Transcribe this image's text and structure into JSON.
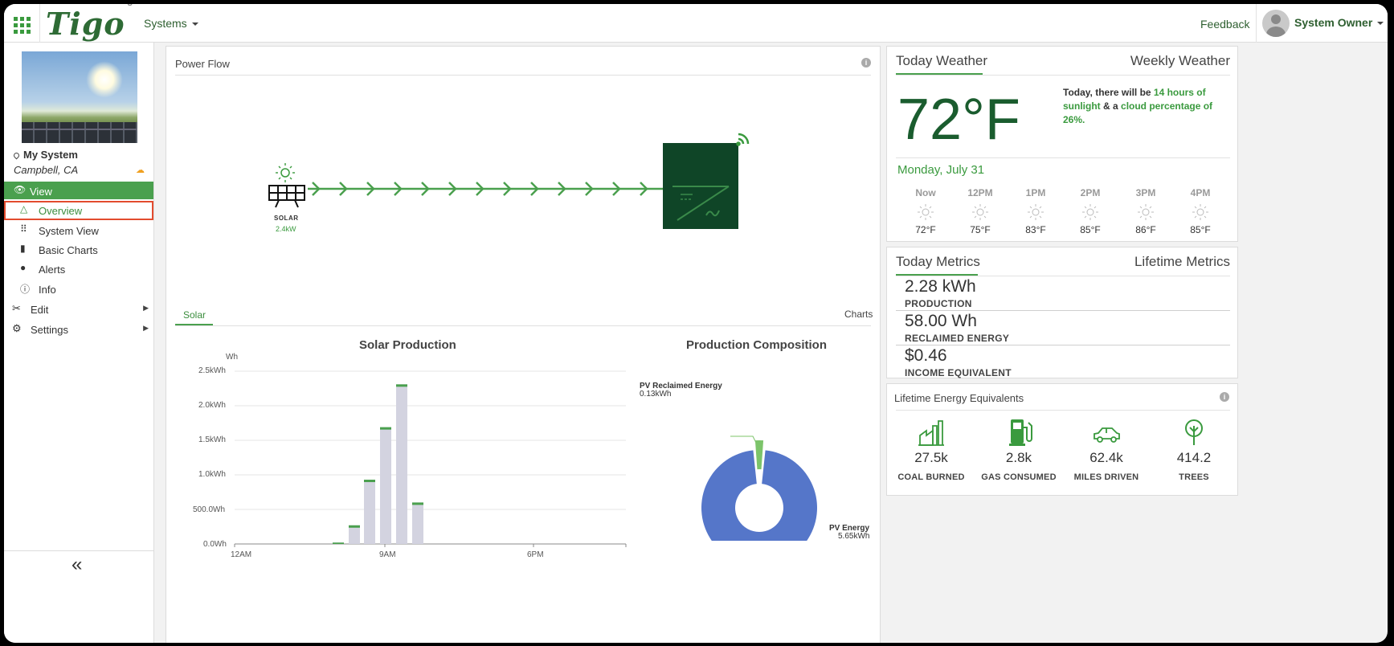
{
  "topbar": {
    "logo": "Tigo",
    "logo_mark": "®",
    "systems_label": "Systems",
    "feedback_label": "Feedback",
    "user_label": "System Owner"
  },
  "sidebar": {
    "system_name": "My System",
    "system_location": "Campbell, CA",
    "view_label": "View",
    "items": [
      {
        "label": "Overview",
        "icon": "triangle-icon",
        "active": true
      },
      {
        "label": "System View",
        "icon": "grid-icon"
      },
      {
        "label": "Basic Charts",
        "icon": "bar-chart-icon"
      },
      {
        "label": "Alerts",
        "icon": "alert-icon"
      },
      {
        "label": "Info",
        "icon": "info-icon"
      }
    ],
    "edit_label": "Edit",
    "settings_label": "Settings",
    "collapse_label": "«"
  },
  "power_flow": {
    "title": "Power Flow",
    "solar_label": "SOLAR",
    "solar_value": "2.4kW"
  },
  "tabs": {
    "solar": "Solar",
    "charts": "Charts"
  },
  "solar_production": {
    "title": "Solar Production",
    "unit": "Wh",
    "y_ticks": [
      "2.5kWh",
      "2.0kWh",
      "1.5kWh",
      "1.0kWh",
      "500.0Wh",
      "0.0Wh"
    ],
    "x_ticks": [
      "12AM",
      "9AM",
      "6PM"
    ]
  },
  "production_composition": {
    "title": "Production Composition",
    "reclaimed_label": "PV Reclaimed Energy",
    "reclaimed_value": "0.13kWh",
    "pv_label": "PV Energy",
    "pv_value": "5.65kWh"
  },
  "chart_data": [
    {
      "type": "bar",
      "title": "Solar Production",
      "ylabel": "Wh",
      "ylim": [
        0,
        2500
      ],
      "categories": [
        "6AM",
        "7AM",
        "8AM",
        "9AM",
        "10AM",
        "11AM"
      ],
      "values": [
        20,
        270,
        930,
        1690,
        2310,
        600
      ],
      "color": "#d3d3e0",
      "cap_color": "#4aa04e"
    },
    {
      "type": "pie",
      "title": "Production Composition",
      "labels": [
        "PV Energy",
        "PV Reclaimed Energy"
      ],
      "values": [
        5.65,
        0.13
      ],
      "colors": [
        "#5576c9",
        "#7cc46a"
      ]
    }
  ],
  "weather": {
    "tab_today": "Today Weather",
    "tab_weekly": "Weekly Weather",
    "temperature": "72°F",
    "desc_prefix": "Today, there will be ",
    "desc_hours": "14 hours of sunlight",
    "desc_mid": " & a ",
    "desc_cloud": "cloud percentage of 26%.",
    "date": "Monday, July 31",
    "hours": [
      {
        "time": "Now",
        "temp": "72°F"
      },
      {
        "time": "12PM",
        "temp": "75°F"
      },
      {
        "time": "1PM",
        "temp": "83°F"
      },
      {
        "time": "2PM",
        "temp": "85°F"
      },
      {
        "time": "3PM",
        "temp": "86°F"
      },
      {
        "time": "4PM",
        "temp": "85°F"
      }
    ]
  },
  "metrics": {
    "tab_today": "Today Metrics",
    "tab_lifetime": "Lifetime Metrics",
    "items": [
      {
        "value": "2.28 kWh",
        "label": "PRODUCTION"
      },
      {
        "value": "58.00 Wh",
        "label": "RECLAIMED ENERGY"
      },
      {
        "value": "$0.46",
        "label": "INCOME EQUIVALENT"
      }
    ]
  },
  "equivalents": {
    "title": "Lifetime Energy Equivalents",
    "items": [
      {
        "value": "27.5k",
        "label": "COAL BURNED",
        "icon": "factory-icon"
      },
      {
        "value": "2.8k",
        "label": "GAS CONSUMED",
        "icon": "gas-pump-icon"
      },
      {
        "value": "62.4k",
        "label": "MILES DRIVEN",
        "icon": "car-icon"
      },
      {
        "value": "414.2",
        "label": "TREES",
        "icon": "tree-icon"
      }
    ]
  },
  "colors": {
    "accent": "#4aa04e",
    "inverter": "#0f4527",
    "flow": "#4aa04e",
    "highlight": "#e24b2e"
  }
}
